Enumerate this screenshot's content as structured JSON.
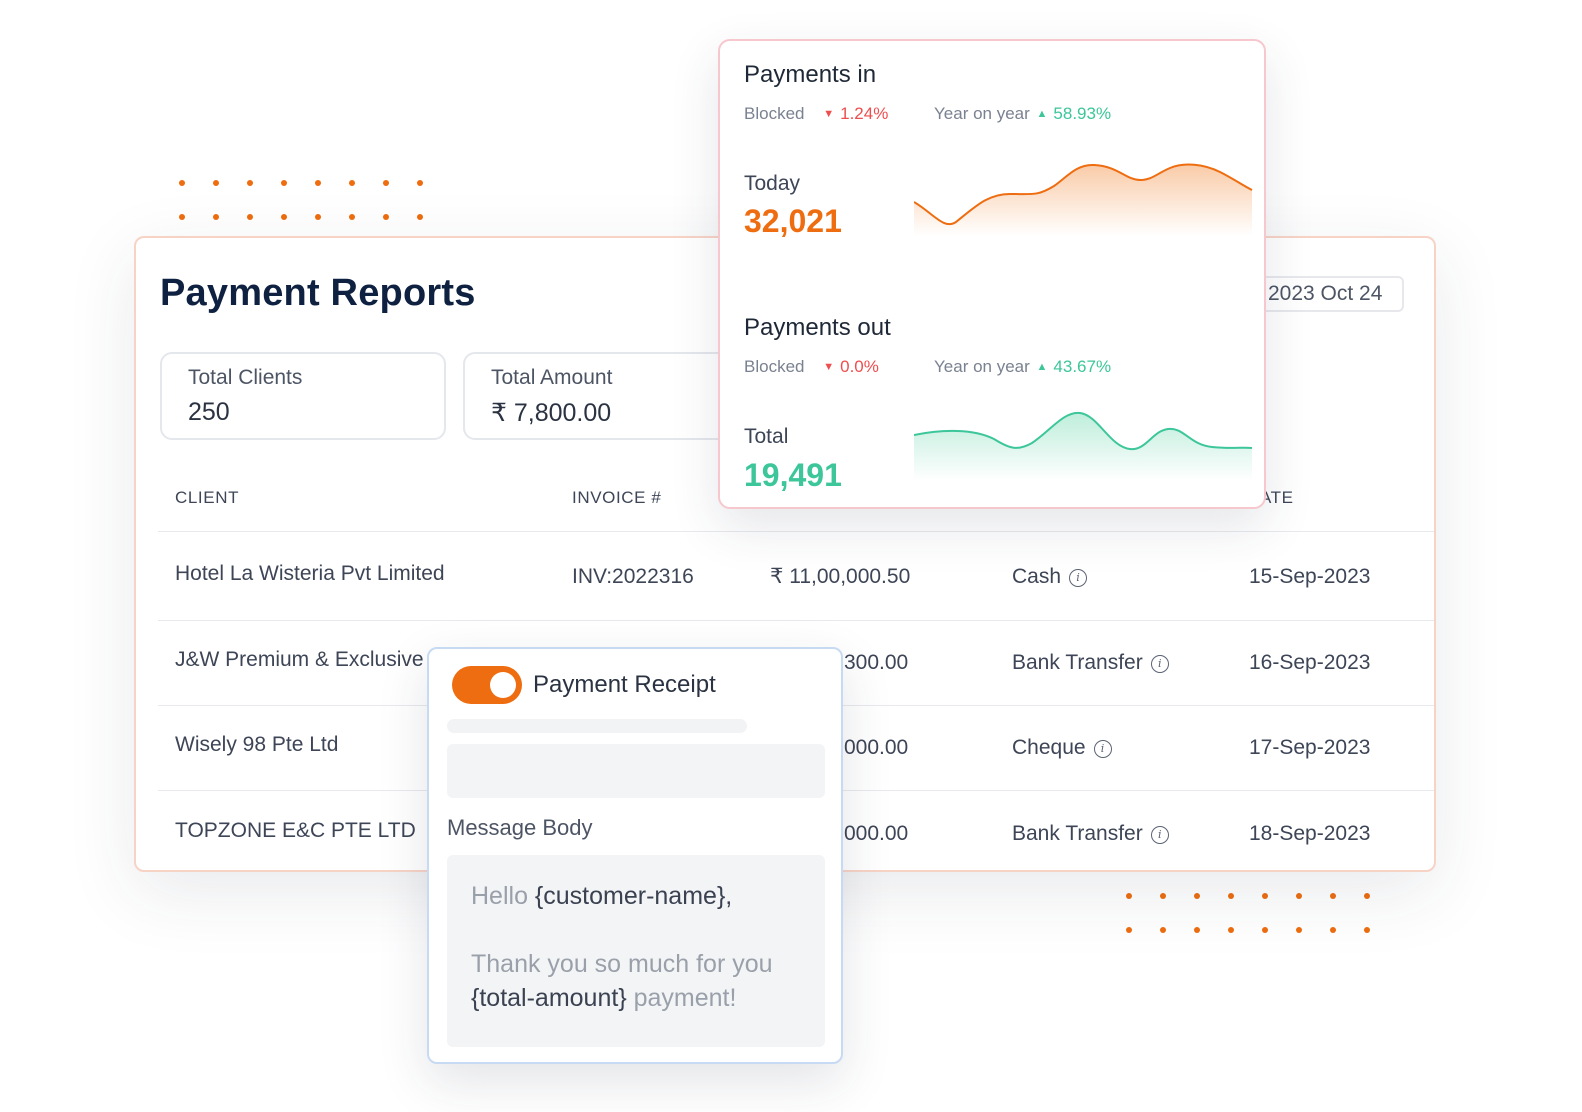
{
  "report": {
    "title": "Payment Reports",
    "date": "2023 Oct 24",
    "stats": [
      {
        "label": "Total Clients",
        "value": "250"
      },
      {
        "label": "Total Amount",
        "value": "₹ 7,800.00"
      }
    ],
    "columns": [
      "CLIENT",
      "INVOICE #",
      "ATE"
    ],
    "rows": [
      {
        "client": "Hotel La Wisteria Pvt Limited",
        "invoice": "INV:2022316",
        "amount": "₹ 11,00,000.50",
        "method": "Cash",
        "date": "15-Sep-2023"
      },
      {
        "client": "J&W Premium & Exclusive",
        "invoice": "",
        "amount": "300.00",
        "method": "Bank Transfer",
        "date": "16-Sep-2023"
      },
      {
        "client": "Wisely 98 Pte Ltd",
        "invoice": "",
        "amount": "000.00",
        "method": "Cheque",
        "date": "17-Sep-2023"
      },
      {
        "client": "TOPZONE E&C PTE LTD",
        "invoice": "",
        "amount": "000.00",
        "method": "Bank Transfer",
        "date": "18-Sep-2023"
      }
    ]
  },
  "payments_in": {
    "title": "Payments in",
    "blocked_label": "Blocked",
    "blocked_value": "1.24%",
    "yoy_label": "Year on year",
    "yoy_value": "58.93%",
    "metric_label": "Today",
    "metric_value": "32,021",
    "color": "#ee6d10"
  },
  "payments_out": {
    "title": "Payments out",
    "blocked_label": "Blocked",
    "blocked_value": "0.0%",
    "yoy_label": "Year on year",
    "yoy_value": "43.67%",
    "metric_label": "Total",
    "metric_value": "19,491",
    "color": "#3cc69a"
  },
  "receipt": {
    "toggle_on": true,
    "title": "Payment Receipt",
    "message_label": "Message Body",
    "msg_hello": "Hello ",
    "msg_var_name": "{customer-name},",
    "msg_thanks": "Thank you so much for you",
    "msg_var_amount": "{total-amount}",
    "msg_end": " payment!"
  }
}
